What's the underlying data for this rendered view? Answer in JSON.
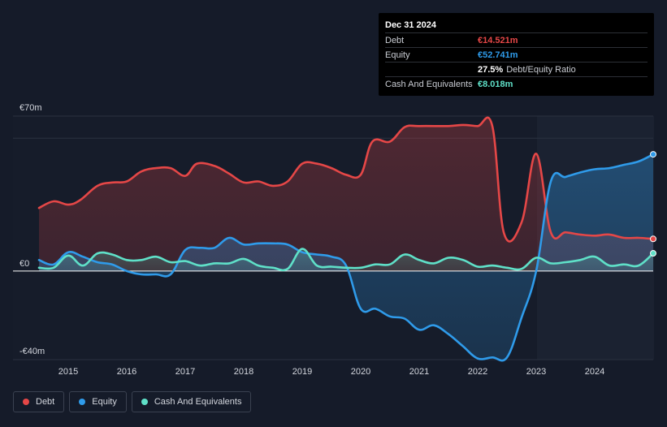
{
  "tooltip": {
    "date": "Dec 31 2024",
    "rows": [
      {
        "label": "Debt",
        "value": "€14.521m",
        "extra": ""
      },
      {
        "label": "Equity",
        "value": "€52.741m",
        "extra": ""
      },
      {
        "label": "",
        "value": "27.5%",
        "extra": "Debt/Equity Ratio"
      },
      {
        "label": "Cash And Equivalents",
        "value": "€8.018m",
        "extra": ""
      }
    ]
  },
  "legend": [
    {
      "label": "Debt",
      "color": "#e54747"
    },
    {
      "label": "Equity",
      "color": "#2f9bea"
    },
    {
      "label": "Cash And Equivalents",
      "color": "#5fe0c8"
    }
  ],
  "chart_data": {
    "type": "area",
    "y_tick_labels": [
      "€70m",
      "€0",
      "-€40m"
    ],
    "ylim": [
      -40,
      70
    ],
    "xlim": [
      2014.5,
      2025.0
    ],
    "x_ticks": [
      2015,
      2016,
      2017,
      2018,
      2019,
      2020,
      2021,
      2022,
      2023,
      2024
    ],
    "x_tick_labels": [
      "2015",
      "2016",
      "2017",
      "2018",
      "2019",
      "2020",
      "2021",
      "2022",
      "2023",
      "2024"
    ],
    "grid": "horizontal",
    "series": [
      {
        "name": "Debt",
        "color": "#e54747",
        "points": [
          [
            2014.5,
            28.5
          ],
          [
            2014.75,
            31.5
          ],
          [
            2015.0,
            30.0
          ],
          [
            2015.2,
            32.0
          ],
          [
            2015.5,
            38.5
          ],
          [
            2015.75,
            40.0
          ],
          [
            2016.0,
            40.5
          ],
          [
            2016.25,
            45.0
          ],
          [
            2016.5,
            46.5
          ],
          [
            2016.75,
            46.5
          ],
          [
            2017.0,
            43.0
          ],
          [
            2017.2,
            48.5
          ],
          [
            2017.5,
            47.5
          ],
          [
            2017.75,
            44.0
          ],
          [
            2018.0,
            40.0
          ],
          [
            2018.25,
            40.5
          ],
          [
            2018.5,
            38.5
          ],
          [
            2018.75,
            40.5
          ],
          [
            2019.0,
            48.5
          ],
          [
            2019.25,
            48.5
          ],
          [
            2019.5,
            46.5
          ],
          [
            2019.75,
            43.5
          ],
          [
            2020.0,
            43.5
          ],
          [
            2020.2,
            58.5
          ],
          [
            2020.5,
            58.5
          ],
          [
            2020.75,
            65.0
          ],
          [
            2021.0,
            65.5
          ],
          [
            2021.5,
            65.5
          ],
          [
            2021.75,
            66.0
          ],
          [
            2022.0,
            65.5
          ],
          [
            2022.25,
            65.5
          ],
          [
            2022.45,
            17.0
          ],
          [
            2022.75,
            22.0
          ],
          [
            2023.0,
            53.0
          ],
          [
            2023.25,
            17.5
          ],
          [
            2023.5,
            17.5
          ],
          [
            2023.75,
            16.5
          ],
          [
            2024.0,
            16.0
          ],
          [
            2024.25,
            16.5
          ],
          [
            2024.5,
            15.0
          ],
          [
            2024.75,
            15.0
          ],
          [
            2025.0,
            14.521
          ]
        ]
      },
      {
        "name": "Equity",
        "color": "#2f9bea",
        "points": [
          [
            2014.5,
            5.0
          ],
          [
            2014.75,
            3.0
          ],
          [
            2015.0,
            8.5
          ],
          [
            2015.25,
            6.5
          ],
          [
            2015.5,
            4.0
          ],
          [
            2015.75,
            3.0
          ],
          [
            2016.0,
            0.0
          ],
          [
            2016.25,
            -1.5
          ],
          [
            2016.5,
            -1.5
          ],
          [
            2016.75,
            -1.5
          ],
          [
            2017.0,
            9.5
          ],
          [
            2017.25,
            10.5
          ],
          [
            2017.5,
            10.5
          ],
          [
            2017.75,
            15.0
          ],
          [
            2018.0,
            12.0
          ],
          [
            2018.25,
            12.5
          ],
          [
            2018.5,
            12.5
          ],
          [
            2018.75,
            12.0
          ],
          [
            2019.0,
            8.5
          ],
          [
            2019.25,
            7.5
          ],
          [
            2019.5,
            6.5
          ],
          [
            2019.75,
            2.5
          ],
          [
            2020.0,
            -17.0
          ],
          [
            2020.25,
            -17.0
          ],
          [
            2020.5,
            -20.5
          ],
          [
            2020.75,
            -21.5
          ],
          [
            2021.0,
            -26.5
          ],
          [
            2021.25,
            -24.5
          ],
          [
            2021.5,
            -28.5
          ],
          [
            2021.75,
            -34.0
          ],
          [
            2022.0,
            -39.5
          ],
          [
            2022.25,
            -39.0
          ],
          [
            2022.5,
            -39.0
          ],
          [
            2022.75,
            -21.0
          ],
          [
            2023.0,
            0.0
          ],
          [
            2023.25,
            40.5
          ],
          [
            2023.5,
            42.5
          ],
          [
            2023.75,
            44.5
          ],
          [
            2024.0,
            46.0
          ],
          [
            2024.25,
            46.5
          ],
          [
            2024.5,
            48.0
          ],
          [
            2024.75,
            49.5
          ],
          [
            2025.0,
            52.741
          ]
        ]
      },
      {
        "name": "Cash And Equivalents",
        "color": "#5fe0c8",
        "points": [
          [
            2014.5,
            1.5
          ],
          [
            2014.75,
            1.5
          ],
          [
            2015.0,
            7.0
          ],
          [
            2015.25,
            2.5
          ],
          [
            2015.5,
            8.0
          ],
          [
            2015.75,
            7.5
          ],
          [
            2016.0,
            5.0
          ],
          [
            2016.25,
            5.0
          ],
          [
            2016.5,
            6.5
          ],
          [
            2016.75,
            4.0
          ],
          [
            2017.0,
            4.5
          ],
          [
            2017.25,
            2.5
          ],
          [
            2017.5,
            3.5
          ],
          [
            2017.75,
            3.5
          ],
          [
            2018.0,
            5.5
          ],
          [
            2018.25,
            2.5
          ],
          [
            2018.5,
            1.5
          ],
          [
            2018.75,
            1.0
          ],
          [
            2019.0,
            10.0
          ],
          [
            2019.25,
            2.5
          ],
          [
            2019.5,
            2.0
          ],
          [
            2019.75,
            1.5
          ],
          [
            2020.0,
            1.5
          ],
          [
            2020.25,
            3.0
          ],
          [
            2020.5,
            3.0
          ],
          [
            2020.75,
            7.5
          ],
          [
            2021.0,
            5.0
          ],
          [
            2021.25,
            3.5
          ],
          [
            2021.5,
            6.0
          ],
          [
            2021.75,
            5.0
          ],
          [
            2022.0,
            2.0
          ],
          [
            2022.25,
            2.5
          ],
          [
            2022.5,
            1.5
          ],
          [
            2022.75,
            1.0
          ],
          [
            2023.0,
            6.0
          ],
          [
            2023.25,
            3.5
          ],
          [
            2023.5,
            4.0
          ],
          [
            2023.75,
            5.0
          ],
          [
            2024.0,
            6.5
          ],
          [
            2024.25,
            2.5
          ],
          [
            2024.5,
            3.0
          ],
          [
            2024.75,
            2.5
          ],
          [
            2025.0,
            8.018
          ]
        ]
      }
    ]
  }
}
